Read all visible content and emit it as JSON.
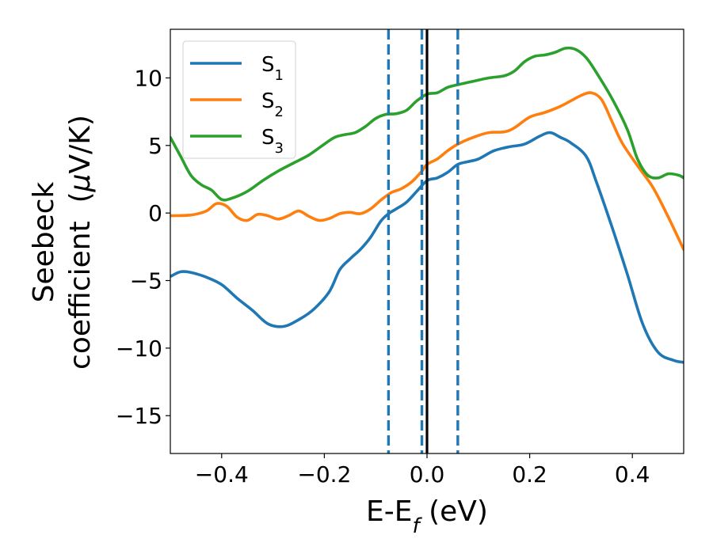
{
  "chart_data": {
    "type": "line",
    "xlabel": {
      "main": "E-E",
      "sub": "f",
      "suffix": " (eV)"
    },
    "ylabel": {
      "line1": "Seebeck",
      "line2_prefix": "coefficient  (",
      "mu": "μ",
      "line2_suffix": "V/K)"
    },
    "xlim": [
      -0.5,
      0.5
    ],
    "ylim": [
      -17.8,
      13.6
    ],
    "xticks": [
      {
        "value": -0.4,
        "label": "−0.4"
      },
      {
        "value": -0.2,
        "label": "−0.2"
      },
      {
        "value": 0.0,
        "label": "0.0"
      },
      {
        "value": 0.2,
        "label": "0.2"
      },
      {
        "value": 0.4,
        "label": "0.4"
      }
    ],
    "yticks": [
      {
        "value": -15,
        "label": "−15"
      },
      {
        "value": -10,
        "label": "−10"
      },
      {
        "value": -5,
        "label": "−5"
      },
      {
        "value": 0,
        "label": "0"
      },
      {
        "value": 5,
        "label": "5"
      },
      {
        "value": 10,
        "label": "10"
      }
    ],
    "grid": false,
    "legend_position": "top-left",
    "vlines": [
      {
        "x": -0.075,
        "style": "dashed",
        "color": "#1f77b4"
      },
      {
        "x": -0.01,
        "style": "dashed",
        "color": "#1f77b4"
      },
      {
        "x": 0.0,
        "style": "solid",
        "color": "#000000"
      },
      {
        "x": 0.06,
        "style": "dashed",
        "color": "#1f77b4"
      }
    ],
    "series": [
      {
        "name": "S",
        "sub": "1",
        "color": "#1f77b4",
        "points": [
          [
            -0.5,
            -4.7
          ],
          [
            -0.48,
            -4.35
          ],
          [
            -0.46,
            -4.4
          ],
          [
            -0.43,
            -4.75
          ],
          [
            -0.4,
            -5.3
          ],
          [
            -0.37,
            -6.3
          ],
          [
            -0.34,
            -7.2
          ],
          [
            -0.31,
            -8.2
          ],
          [
            -0.28,
            -8.4
          ],
          [
            -0.25,
            -7.9
          ],
          [
            -0.22,
            -7.1
          ],
          [
            -0.19,
            -5.8
          ],
          [
            -0.17,
            -4.2
          ],
          [
            -0.15,
            -3.4
          ],
          [
            -0.13,
            -2.7
          ],
          [
            -0.11,
            -1.8
          ],
          [
            -0.09,
            -0.6
          ],
          [
            -0.075,
            -0.05
          ],
          [
            -0.06,
            0.3
          ],
          [
            -0.04,
            0.8
          ],
          [
            -0.02,
            1.6
          ],
          [
            0.0,
            2.4
          ],
          [
            0.02,
            2.6
          ],
          [
            0.04,
            3.0
          ],
          [
            0.06,
            3.6
          ],
          [
            0.08,
            3.8
          ],
          [
            0.1,
            4.0
          ],
          [
            0.13,
            4.6
          ],
          [
            0.16,
            4.9
          ],
          [
            0.19,
            5.1
          ],
          [
            0.22,
            5.7
          ],
          [
            0.24,
            5.95
          ],
          [
            0.26,
            5.6
          ],
          [
            0.28,
            5.2
          ],
          [
            0.31,
            4.2
          ],
          [
            0.33,
            2.3
          ],
          [
            0.36,
            -1.0
          ],
          [
            0.39,
            -4.5
          ],
          [
            0.42,
            -8.2
          ],
          [
            0.45,
            -10.3
          ],
          [
            0.48,
            -10.9
          ],
          [
            0.5,
            -11.05
          ]
        ]
      },
      {
        "name": "S",
        "sub": "2",
        "color": "#ff7f0e",
        "points": [
          [
            -0.5,
            -0.2
          ],
          [
            -0.46,
            -0.15
          ],
          [
            -0.43,
            0.15
          ],
          [
            -0.41,
            0.7
          ],
          [
            -0.39,
            0.5
          ],
          [
            -0.37,
            -0.3
          ],
          [
            -0.35,
            -0.55
          ],
          [
            -0.33,
            -0.1
          ],
          [
            -0.31,
            -0.2
          ],
          [
            -0.29,
            -0.45
          ],
          [
            -0.27,
            -0.2
          ],
          [
            -0.25,
            0.15
          ],
          [
            -0.23,
            -0.25
          ],
          [
            -0.21,
            -0.55
          ],
          [
            -0.19,
            -0.4
          ],
          [
            -0.17,
            -0.05
          ],
          [
            -0.15,
            0.05
          ],
          [
            -0.13,
            -0.05
          ],
          [
            -0.11,
            0.3
          ],
          [
            -0.09,
            0.95
          ],
          [
            -0.07,
            1.5
          ],
          [
            -0.05,
            1.8
          ],
          [
            -0.03,
            2.3
          ],
          [
            -0.01,
            3.1
          ],
          [
            0.0,
            3.6
          ],
          [
            0.02,
            4.0
          ],
          [
            0.04,
            4.6
          ],
          [
            0.06,
            5.1
          ],
          [
            0.09,
            5.6
          ],
          [
            0.12,
            5.95
          ],
          [
            0.15,
            6.0
          ],
          [
            0.17,
            6.3
          ],
          [
            0.2,
            7.1
          ],
          [
            0.23,
            7.45
          ],
          [
            0.26,
            7.9
          ],
          [
            0.28,
            8.3
          ],
          [
            0.3,
            8.7
          ],
          [
            0.32,
            8.9
          ],
          [
            0.34,
            8.4
          ],
          [
            0.36,
            6.8
          ],
          [
            0.38,
            5.2
          ],
          [
            0.41,
            3.5
          ],
          [
            0.44,
            1.9
          ],
          [
            0.47,
            -0.3
          ],
          [
            0.5,
            -2.7
          ]
        ]
      },
      {
        "name": "S",
        "sub": "3",
        "color": "#2ca02c",
        "points": [
          [
            -0.5,
            5.6
          ],
          [
            -0.48,
            4.2
          ],
          [
            -0.46,
            2.8
          ],
          [
            -0.44,
            2.1
          ],
          [
            -0.42,
            1.7
          ],
          [
            -0.4,
            1.0
          ],
          [
            -0.38,
            1.1
          ],
          [
            -0.35,
            1.6
          ],
          [
            -0.32,
            2.4
          ],
          [
            -0.29,
            3.1
          ],
          [
            -0.26,
            3.7
          ],
          [
            -0.23,
            4.3
          ],
          [
            -0.2,
            5.1
          ],
          [
            -0.18,
            5.6
          ],
          [
            -0.16,
            5.8
          ],
          [
            -0.14,
            5.95
          ],
          [
            -0.12,
            6.4
          ],
          [
            -0.1,
            7.0
          ],
          [
            -0.08,
            7.3
          ],
          [
            -0.06,
            7.35
          ],
          [
            -0.04,
            7.6
          ],
          [
            -0.02,
            8.3
          ],
          [
            0.0,
            8.8
          ],
          [
            0.02,
            8.9
          ],
          [
            0.04,
            9.3
          ],
          [
            0.06,
            9.5
          ],
          [
            0.09,
            9.75
          ],
          [
            0.12,
            10.0
          ],
          [
            0.15,
            10.15
          ],
          [
            0.17,
            10.5
          ],
          [
            0.19,
            11.2
          ],
          [
            0.21,
            11.6
          ],
          [
            0.23,
            11.7
          ],
          [
            0.25,
            11.9
          ],
          [
            0.27,
            12.2
          ],
          [
            0.29,
            12.1
          ],
          [
            0.31,
            11.5
          ],
          [
            0.33,
            10.4
          ],
          [
            0.36,
            8.5
          ],
          [
            0.39,
            6.2
          ],
          [
            0.41,
            4.0
          ],
          [
            0.43,
            2.8
          ],
          [
            0.45,
            2.6
          ],
          [
            0.47,
            2.9
          ],
          [
            0.49,
            2.8
          ],
          [
            0.5,
            2.6
          ]
        ]
      }
    ]
  }
}
